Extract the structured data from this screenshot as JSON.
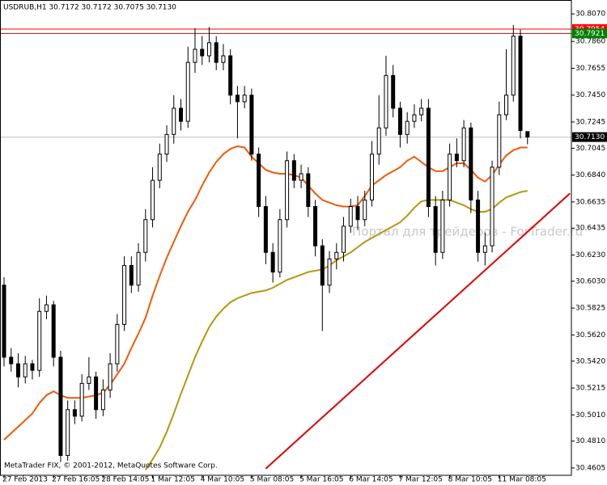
{
  "chart_data": {
    "type": "candlestick",
    "header": "USDRUB,H1  30.7172 30.7172 30.7075 30.7130",
    "watermark": "Портал для трейдеров - ForTrader.ru",
    "copyright": "MetaTrader FIX, © 2001-2012, MetaQuotes Software Corp.",
    "categories": [
      "27 Feb 2013",
      null,
      null,
      null,
      null,
      null,
      null,
      "27 Feb 16:05",
      null,
      null,
      null,
      null,
      null,
      null,
      "28 Feb 14:05",
      null,
      null,
      null,
      null,
      null,
      null,
      "1 Mar 12:05",
      null,
      null,
      null,
      null,
      null,
      null,
      "4 Mar 10:05",
      null,
      null,
      null,
      null,
      null,
      null,
      "5 Mar 08:05",
      null,
      null,
      null,
      null,
      null,
      null,
      "5 Mar 16:05",
      null,
      null,
      null,
      null,
      null,
      null,
      "6 Mar 14:05",
      null,
      null,
      null,
      null,
      null,
      null,
      "7 Mar 12:05",
      null,
      null,
      null,
      null,
      null,
      null,
      "8 Mar 10:05",
      null,
      null,
      null,
      null,
      null,
      null,
      "11 Mar 08:05",
      null,
      null,
      null,
      null
    ],
    "open": [
      30.6,
      30.545,
      30.54,
      30.53,
      30.54,
      30.535,
      30.58,
      30.585,
      30.545,
      30.47,
      30.505,
      30.5,
      30.525,
      30.53,
      30.505,
      30.52,
      30.54,
      30.57,
      30.615,
      30.6,
      30.625,
      30.65,
      30.68,
      30.7,
      30.715,
      30.735,
      30.725,
      30.77,
      30.78,
      30.775,
      30.785,
      30.77,
      30.775,
      30.745,
      30.74,
      30.745,
      30.7,
      30.66,
      30.625,
      30.61,
      30.65,
      30.695,
      30.68,
      30.685,
      30.66,
      30.63,
      30.6,
      30.62,
      30.625,
      30.645,
      30.66,
      30.65,
      30.665,
      30.7,
      30.72,
      30.76,
      30.735,
      30.715,
      30.725,
      30.73,
      30.735,
      30.66,
      30.625,
      30.665,
      30.7,
      30.695,
      30.72,
      30.665,
      30.625,
      30.63,
      30.69,
      30.73,
      30.745,
      30.79,
      30.7172
    ],
    "high": [
      30.606,
      30.552,
      30.548,
      30.546,
      30.543,
      30.59,
      30.592,
      30.588,
      30.55,
      30.512,
      30.512,
      30.532,
      30.545,
      30.534,
      30.528,
      30.548,
      30.578,
      30.622,
      30.622,
      30.632,
      30.658,
      30.69,
      30.708,
      30.722,
      30.745,
      30.742,
      30.782,
      30.796,
      30.79,
      30.797,
      30.79,
      30.784,
      30.78,
      30.752,
      30.752,
      30.75,
      30.705,
      30.668,
      30.632,
      30.658,
      30.702,
      30.7,
      30.692,
      30.69,
      30.665,
      30.635,
      30.626,
      30.632,
      30.652,
      30.666,
      30.668,
      30.672,
      30.71,
      30.745,
      30.775,
      30.768,
      30.74,
      30.732,
      30.738,
      30.742,
      30.742,
      30.668,
      30.672,
      30.708,
      30.712,
      30.726,
      30.724,
      30.672,
      30.64,
      30.695,
      30.74,
      30.78,
      30.7985,
      30.795,
      30.7172
    ],
    "low": [
      30.538,
      30.534,
      30.522,
      30.525,
      30.528,
      30.53,
      30.574,
      30.538,
      30.465,
      30.466,
      30.494,
      30.496,
      30.52,
      30.498,
      30.5,
      30.514,
      30.534,
      30.565,
      30.594,
      30.595,
      30.618,
      30.644,
      30.674,
      30.694,
      30.708,
      30.718,
      30.72,
      30.762,
      30.768,
      30.77,
      30.764,
      30.764,
      30.738,
      30.712,
      30.735,
      30.695,
      30.652,
      30.616,
      30.602,
      30.606,
      30.644,
      30.674,
      30.674,
      30.652,
      30.622,
      30.565,
      30.594,
      30.612,
      30.618,
      30.64,
      30.642,
      30.645,
      30.66,
      30.692,
      30.714,
      30.728,
      30.705,
      30.708,
      30.72,
      30.725,
      30.652,
      30.615,
      30.62,
      30.66,
      30.69,
      30.69,
      30.655,
      30.618,
      30.615,
      30.625,
      30.684,
      30.726,
      30.74,
      30.712,
      30.7075
    ],
    "close": [
      30.545,
      30.54,
      30.53,
      30.54,
      30.535,
      30.58,
      30.585,
      30.545,
      30.47,
      30.505,
      30.5,
      30.525,
      30.53,
      30.505,
      30.52,
      30.54,
      30.57,
      30.615,
      30.6,
      30.625,
      30.65,
      30.68,
      30.7,
      30.715,
      30.735,
      30.725,
      30.77,
      30.78,
      30.775,
      30.785,
      30.77,
      30.775,
      30.745,
      30.74,
      30.745,
      30.7,
      30.66,
      30.625,
      30.61,
      30.65,
      30.695,
      30.68,
      30.685,
      30.66,
      30.63,
      30.6,
      30.62,
      30.625,
      30.645,
      30.66,
      30.65,
      30.665,
      30.7,
      30.72,
      30.76,
      30.735,
      30.715,
      30.725,
      30.73,
      30.735,
      30.66,
      30.625,
      30.665,
      30.7,
      30.695,
      30.72,
      30.665,
      30.625,
      30.63,
      30.69,
      30.73,
      30.745,
      30.79,
      30.718,
      30.713
    ],
    "lines": [
      {
        "color": "#f05a0a",
        "values": [
          30.482,
          30.487,
          30.492,
          30.497,
          30.502,
          30.51,
          30.516,
          30.519,
          30.516,
          30.514,
          30.514,
          30.514,
          30.515,
          30.516,
          30.518,
          30.524,
          30.532,
          30.54,
          30.552,
          30.563,
          30.575,
          30.592,
          30.607,
          30.621,
          30.633,
          30.645,
          30.656,
          30.665,
          30.676,
          30.686,
          30.694,
          30.7,
          30.704,
          30.706,
          30.705,
          30.698,
          30.693,
          30.688,
          30.686,
          30.685,
          30.685,
          30.684,
          30.682,
          30.676,
          30.67,
          30.665,
          30.663,
          30.661,
          30.66,
          30.66,
          30.661,
          30.668,
          30.676,
          30.68,
          30.684,
          30.687,
          30.69,
          30.695,
          30.698,
          30.694,
          30.69,
          30.687,
          30.687,
          30.69,
          30.693,
          30.693,
          30.688,
          30.682,
          30.679,
          30.684,
          30.692,
          30.699,
          30.703,
          30.705,
          30.705
        ]
      },
      {
        "color": "#b8960c",
        "values": [
          null,
          null,
          null,
          null,
          null,
          null,
          null,
          null,
          null,
          null,
          null,
          null,
          null,
          null,
          null,
          null,
          null,
          null,
          null,
          null,
          30.459,
          30.467,
          30.476,
          30.488,
          30.502,
          30.517,
          30.531,
          30.545,
          30.557,
          30.568,
          30.576,
          30.582,
          30.587,
          30.59,
          30.592,
          30.594,
          30.595,
          30.596,
          30.598,
          30.601,
          30.604,
          30.606,
          30.608,
          30.61,
          30.611,
          30.612,
          30.615,
          30.619,
          30.622,
          30.625,
          30.629,
          30.633,
          30.636,
          30.639,
          30.642,
          30.645,
          30.648,
          30.653,
          30.659,
          30.664,
          30.665,
          30.665,
          30.665,
          30.665,
          30.663,
          30.661,
          30.658,
          30.656,
          30.656,
          30.658,
          30.663,
          30.667,
          30.669,
          30.671,
          30.672
        ]
      }
    ],
    "trendline": {
      "color": "#e00000",
      "x": [
        37,
        80
      ],
      "values": [
        30.46,
        30.67
      ]
    },
    "hlines": [
      {
        "value": 30.7954,
        "label": "30.7954",
        "line_color": "#ff0000",
        "label_color": "#ff0000"
      },
      {
        "value": 30.7921,
        "label": "30.7921",
        "line_color": "#a01818",
        "label_color": "#008000"
      },
      {
        "value": 30.713,
        "label": "30.7130",
        "line_color": "#c0c0c0",
        "label_color": "#000000"
      }
    ],
    "ylim": [
      30.4549,
      30.8176
    ],
    "yticks": [
      {
        "value": 30.807,
        "label": "30.8070"
      },
      {
        "value": 30.786,
        "label": "30.7860"
      },
      {
        "value": 30.7655,
        "label": "30.7655"
      },
      {
        "value": 30.745,
        "label": "30.7450"
      },
      {
        "value": 30.7245,
        "label": "30.7245"
      },
      {
        "value": 30.7045,
        "label": "30.7045"
      },
      {
        "value": 30.684,
        "label": "30.6840"
      },
      {
        "value": 30.6635,
        "label": "30.6635"
      },
      {
        "value": 30.6435,
        "label": "30.6435"
      },
      {
        "value": 30.623,
        "label": "30.6230"
      },
      {
        "value": 30.603,
        "label": "30.6030"
      },
      {
        "value": 30.5825,
        "label": "30.5825"
      },
      {
        "value": 30.562,
        "label": "30.5620"
      },
      {
        "value": 30.542,
        "label": "30.5420"
      },
      {
        "value": 30.5215,
        "label": "30.5215"
      },
      {
        "value": 30.501,
        "label": "30.5010"
      },
      {
        "value": 30.481,
        "label": "30.4810"
      },
      {
        "value": 30.4605,
        "label": "30.4605"
      }
    ],
    "bull_color": "#ffffff",
    "bear_color": "#000000",
    "grid": false
  }
}
